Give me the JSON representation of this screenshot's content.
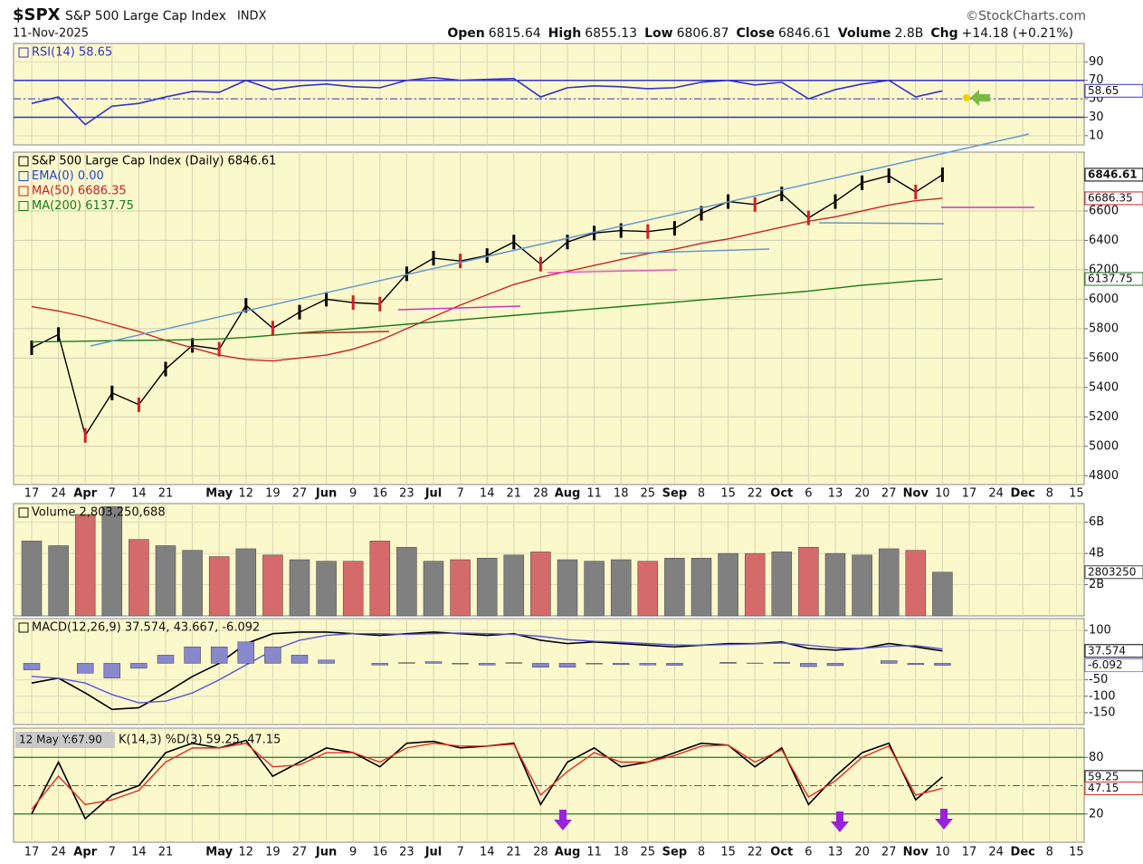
{
  "header": {
    "symbol": "$SPX",
    "name": "S&P 500 Large Cap Index",
    "exchange": "INDX",
    "date": "11-Nov-2025",
    "brand": "©StockCharts.com",
    "quote": [
      {
        "label": "Open",
        "value": "6815.64"
      },
      {
        "label": "High",
        "value": "6855.13"
      },
      {
        "label": "Low",
        "value": "6806.87"
      },
      {
        "label": "Close",
        "value": "6846.61"
      },
      {
        "label": "Volume",
        "value": "2.8B"
      },
      {
        "label": "Chg",
        "value": "+14.18 (+0.21%)"
      }
    ]
  },
  "x_axis": {
    "categories": [
      "17",
      "24",
      "Apr",
      "7",
      "14",
      "21",
      null,
      "May",
      "12",
      "19",
      "27",
      "Jun",
      "9",
      "16",
      "23",
      "Jul",
      "7",
      "14",
      "21",
      "28",
      "Aug",
      "11",
      "18",
      "25",
      "Sep",
      "8",
      "15",
      "22",
      "Oct",
      "6",
      "13",
      "20",
      "27",
      "Nov",
      "10",
      "17",
      "24",
      "Dec",
      "8",
      "15"
    ]
  },
  "chart_data": [
    {
      "type": "line",
      "ylim": [
        0,
        110
      ],
      "yticks": [
        10,
        30,
        50,
        70,
        90
      ],
      "overbought": 70,
      "oversold": 30,
      "midline": 50,
      "line_color": "#3333cc",
      "series": [
        {
          "name": "RSI(14) 58.65",
          "color": "#3333cc",
          "tag": true,
          "values": [
            45,
            52,
            22,
            42,
            45,
            52,
            58,
            57,
            70,
            60,
            64,
            66,
            63,
            62,
            70,
            73,
            70,
            71,
            72,
            52,
            62,
            64,
            63,
            61,
            62,
            68,
            70,
            65,
            68,
            50,
            60,
            66,
            70,
            52,
            58.65,
            null,
            null,
            null,
            null,
            null
          ]
        }
      ]
    },
    {
      "type": "line",
      "ylim": [
        4740,
        7000
      ],
      "yticks": [
        4800,
        5000,
        5200,
        5400,
        5600,
        5800,
        6000,
        6200,
        6400,
        6600
      ],
      "grid": true,
      "extra_legend": {
        "text": "EMA(0) 0.00",
        "color": "#2244cc"
      },
      "series": [
        {
          "name": "S&P 500 Large Cap Index (Daily) 6846.61",
          "color": "#000000",
          "tag": true,
          "markers": true,
          "values": [
            5670,
            5760,
            5074,
            5363,
            5283,
            5525,
            5686,
            5660,
            5958,
            5803,
            5912,
            6000,
            5977,
            5967,
            6173,
            6279,
            6260,
            6297,
            6389,
            6238,
            6389,
            6450,
            6467,
            6460,
            6482,
            6584,
            6664,
            6644,
            6716,
            6553,
            6664,
            6792,
            6840,
            6729,
            6846.61,
            null,
            null,
            null,
            null,
            null
          ]
        },
        {
          "name": "MA(50) 6686.35",
          "color": "#cc2222",
          "tag": true,
          "values": [
            5950,
            5920,
            5880,
            5830,
            5780,
            5720,
            5670,
            5620,
            5590,
            5580,
            5600,
            5620,
            5660,
            5720,
            5800,
            5880,
            5960,
            6030,
            6100,
            6150,
            6190,
            6230,
            6270,
            6310,
            6340,
            6380,
            6410,
            6450,
            6490,
            6530,
            6560,
            6600,
            6640,
            6670,
            6686.35,
            null,
            null,
            null,
            null,
            null
          ]
        },
        {
          "name": "MA(200) 6137.75",
          "color": "#1a7a1a",
          "tag": true,
          "values": [
            5710,
            5712,
            5715,
            5718,
            5720,
            5722,
            5725,
            5730,
            5740,
            5755,
            5770,
            5785,
            5800,
            5815,
            5830,
            5845,
            5860,
            5875,
            5890,
            5905,
            5920,
            5935,
            5950,
            5965,
            5980,
            5995,
            6010,
            6025,
            6040,
            6055,
            6075,
            6095,
            6110,
            6125,
            6137.75,
            null,
            null,
            null,
            null,
            null
          ]
        }
      ]
    },
    {
      "type": "bar",
      "ylim": [
        0,
        7.2
      ],
      "yticks": [
        {
          "value": 2,
          "label": "2B"
        },
        {
          "value": 4,
          "label": "4B"
        },
        {
          "value": 6,
          "label": "6B"
        }
      ],
      "legend": "Volume 2,803,250,688",
      "last_label": "2803250",
      "down_color": "#d46a6a",
      "series": [
        {
          "color": "#808080",
          "values": [
            4.8,
            4.5,
            6.5,
            7.0,
            4.9,
            4.5,
            4.2,
            3.8,
            4.3,
            3.9,
            3.6,
            3.5,
            3.5,
            4.8,
            4.4,
            3.5,
            3.6,
            3.7,
            3.9,
            4.1,
            3.6,
            3.5,
            3.6,
            3.5,
            3.7,
            3.7,
            4.0,
            4.0,
            4.1,
            4.4,
            4.0,
            3.9,
            4.3,
            4.2,
            2.8,
            null,
            null,
            null,
            null,
            null
          ]
        }
      ]
    },
    {
      "type": "line",
      "ylim": [
        -186,
        136
      ],
      "yticks": [
        -150,
        -100,
        -50,
        100
      ],
      "legend": "MACD(12,26,9) 37.574, 43.667, -6.092",
      "series": [
        {
          "color": "#000000",
          "tag": true,
          "values": [
            -60,
            -45,
            -90,
            -140,
            -135,
            -90,
            -40,
            0,
            60,
            90,
            95,
            95,
            90,
            85,
            90,
            95,
            90,
            85,
            90,
            70,
            60,
            65,
            60,
            55,
            50,
            55,
            60,
            60,
            65,
            45,
            40,
            45,
            60,
            50,
            37.574,
            null,
            null,
            null,
            null,
            null
          ]
        },
        {
          "color": "#5555dd",
          "values": [
            -40,
            -45,
            -60,
            -95,
            -120,
            -115,
            -90,
            -50,
            -5,
            40,
            70,
            85,
            90,
            90,
            88,
            90,
            92,
            90,
            88,
            82,
            72,
            67,
            64,
            60,
            56,
            55,
            57,
            59,
            62,
            55,
            47,
            45,
            52,
            54,
            43.667,
            null,
            null,
            null,
            null,
            null
          ]
        },
        {
          "color": "#8888cc",
          "style": "histogram",
          "tag": true,
          "values": [
            -20,
            0,
            -30,
            -45,
            -15,
            25,
            50,
            50,
            65,
            50,
            25,
            10,
            0,
            -5,
            2,
            5,
            -2,
            -5,
            2,
            -12,
            -12,
            -2,
            -4,
            -5,
            -6,
            0,
            3,
            1,
            3,
            -10,
            -7,
            0,
            8,
            -4,
            -6.092,
            null,
            null,
            null,
            null,
            null
          ]
        }
      ]
    },
    {
      "type": "line",
      "ylim": [
        -10,
        111
      ],
      "yticks": [
        20,
        80
      ],
      "midline": 50,
      "line_color": "#2a7a2a",
      "legend": "K(14,3) %D(3) 59.25, 47.15",
      "note": "12 May Y:67.90",
      "series": [
        {
          "color": "#000000",
          "tag": true,
          "values": [
            20,
            75,
            15,
            40,
            50,
            85,
            95,
            90,
            98,
            60,
            75,
            90,
            85,
            70,
            95,
            97,
            90,
            92,
            95,
            30,
            75,
            90,
            70,
            75,
            85,
            95,
            93,
            70,
            90,
            30,
            60,
            85,
            95,
            35,
            59.25,
            null,
            null,
            null,
            null,
            null
          ]
        },
        {
          "color": "#e03020",
          "tag": true,
          "values": [
            25,
            60,
            30,
            35,
            45,
            75,
            90,
            90,
            95,
            70,
            72,
            85,
            85,
            75,
            90,
            95,
            92,
            92,
            94,
            40,
            65,
            85,
            75,
            75,
            82,
            92,
            93,
            75,
            88,
            38,
            55,
            80,
            92,
            40,
            47.15,
            null,
            null,
            null,
            null,
            null
          ]
        }
      ]
    }
  ]
}
